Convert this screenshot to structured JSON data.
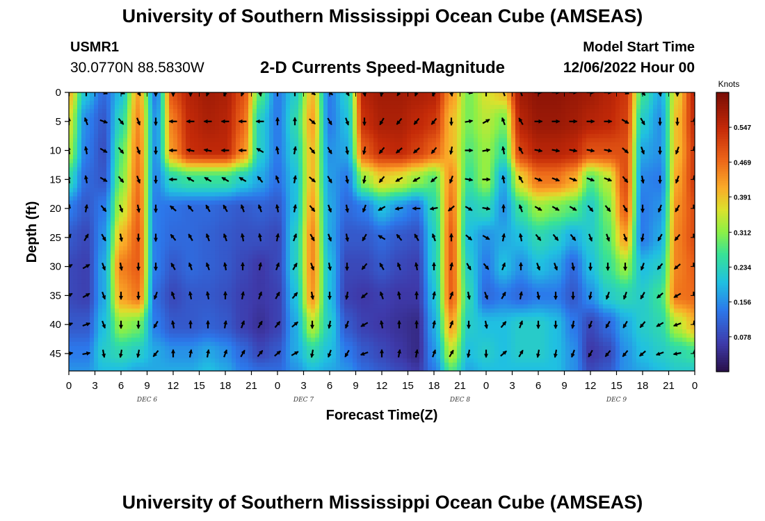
{
  "page": {
    "title_top": "University of Southern Mississippi Ocean Cube (AMSEAS)",
    "title_bottom": "University of Southern Mississippi Ocean Cube (AMSEAS)",
    "station_id": "USMR1",
    "coords": "30.0770N  88.5830W",
    "chart_title": "2-D Currents Speed-Magnitude",
    "model_start_label": "Model Start Time",
    "model_start_value": "12/06/2022 Hour 00"
  },
  "chart_data": {
    "type": "heatmap",
    "title": "2-D Currents Speed-Magnitude",
    "xlabel": "Forecast Time(Z)",
    "ylabel": "Depth (ft)",
    "colorbar_label": "Knots",
    "x_range_hours": [
      0,
      72
    ],
    "y_range_ft": [
      0,
      48
    ],
    "x_ticks": [
      {
        "hour": 0,
        "label": "0"
      },
      {
        "hour": 3,
        "label": "3"
      },
      {
        "hour": 6,
        "label": "6"
      },
      {
        "hour": 9,
        "label": "9"
      },
      {
        "hour": 12,
        "label": "12"
      },
      {
        "hour": 15,
        "label": "15"
      },
      {
        "hour": 18,
        "label": "18"
      },
      {
        "hour": 21,
        "label": "21"
      },
      {
        "hour": 24,
        "label": "0"
      },
      {
        "hour": 27,
        "label": "3"
      },
      {
        "hour": 30,
        "label": "6"
      },
      {
        "hour": 33,
        "label": "9"
      },
      {
        "hour": 36,
        "label": "12"
      },
      {
        "hour": 39,
        "label": "15"
      },
      {
        "hour": 42,
        "label": "18"
      },
      {
        "hour": 45,
        "label": "21"
      },
      {
        "hour": 48,
        "label": "0"
      },
      {
        "hour": 51,
        "label": "3"
      },
      {
        "hour": 54,
        "label": "6"
      },
      {
        "hour": 57,
        "label": "9"
      },
      {
        "hour": 60,
        "label": "12"
      },
      {
        "hour": 63,
        "label": "15"
      },
      {
        "hour": 66,
        "label": "18"
      },
      {
        "hour": 69,
        "label": "21"
      },
      {
        "hour": 72,
        "label": "0"
      }
    ],
    "date_labels": [
      {
        "hour": 9,
        "label": "DEC 6"
      },
      {
        "hour": 27,
        "label": "DEC 7"
      },
      {
        "hour": 45,
        "label": "DEC 8"
      },
      {
        "hour": 63,
        "label": "DEC 9"
      }
    ],
    "y_ticks": [
      0,
      5,
      10,
      15,
      20,
      25,
      30,
      35,
      40,
      45
    ],
    "colorbar_ticks": [
      0.078,
      0.156,
      0.234,
      0.312,
      0.391,
      0.469,
      0.547
    ],
    "value_range": [
      0.0,
      0.625
    ],
    "heat_columns_hours": [
      0,
      2,
      4,
      6,
      8,
      10,
      12,
      14,
      16,
      18,
      20,
      22,
      24,
      26,
      28,
      30,
      32,
      34,
      36,
      38,
      40,
      42,
      44,
      46,
      48,
      50,
      52,
      54,
      56,
      58,
      60,
      62,
      64,
      66,
      68,
      70,
      72
    ],
    "heat_rows_ft": [
      0,
      5,
      10,
      15,
      20,
      25,
      30,
      35,
      40,
      45,
      48
    ],
    "speed_knots": [
      [
        0.4,
        0.2,
        0.12,
        0.2,
        0.42,
        0.14,
        0.5,
        0.56,
        0.58,
        0.57,
        0.5,
        0.28,
        0.14,
        0.22,
        0.4,
        0.14,
        0.22,
        0.56,
        0.58,
        0.58,
        0.57,
        0.56,
        0.43,
        0.3,
        0.36,
        0.39,
        0.58,
        0.6,
        0.6,
        0.59,
        0.58,
        0.56,
        0.53,
        0.26,
        0.18,
        0.38,
        0.55
      ],
      [
        0.36,
        0.15,
        0.1,
        0.24,
        0.44,
        0.16,
        0.46,
        0.55,
        0.57,
        0.56,
        0.48,
        0.22,
        0.14,
        0.24,
        0.42,
        0.14,
        0.2,
        0.54,
        0.57,
        0.57,
        0.55,
        0.53,
        0.4,
        0.3,
        0.34,
        0.3,
        0.56,
        0.59,
        0.59,
        0.58,
        0.56,
        0.55,
        0.52,
        0.22,
        0.16,
        0.4,
        0.54
      ],
      [
        0.33,
        0.14,
        0.09,
        0.28,
        0.45,
        0.16,
        0.44,
        0.54,
        0.55,
        0.55,
        0.45,
        0.22,
        0.14,
        0.22,
        0.4,
        0.16,
        0.18,
        0.49,
        0.54,
        0.55,
        0.52,
        0.48,
        0.4,
        0.28,
        0.32,
        0.26,
        0.52,
        0.56,
        0.56,
        0.55,
        0.5,
        0.5,
        0.5,
        0.18,
        0.16,
        0.4,
        0.52
      ],
      [
        0.24,
        0.12,
        0.1,
        0.3,
        0.46,
        0.15,
        0.24,
        0.26,
        0.26,
        0.26,
        0.22,
        0.18,
        0.13,
        0.2,
        0.4,
        0.17,
        0.14,
        0.32,
        0.38,
        0.36,
        0.32,
        0.28,
        0.44,
        0.26,
        0.32,
        0.18,
        0.38,
        0.46,
        0.46,
        0.42,
        0.28,
        0.34,
        0.5,
        0.15,
        0.14,
        0.42,
        0.52
      ],
      [
        0.14,
        0.1,
        0.14,
        0.34,
        0.47,
        0.14,
        0.13,
        0.12,
        0.12,
        0.11,
        0.1,
        0.11,
        0.1,
        0.2,
        0.42,
        0.18,
        0.12,
        0.14,
        0.2,
        0.16,
        0.13,
        0.24,
        0.46,
        0.22,
        0.24,
        0.16,
        0.26,
        0.32,
        0.3,
        0.28,
        0.22,
        0.3,
        0.48,
        0.14,
        0.16,
        0.44,
        0.5
      ],
      [
        0.1,
        0.08,
        0.16,
        0.4,
        0.48,
        0.14,
        0.12,
        0.12,
        0.11,
        0.1,
        0.09,
        0.09,
        0.08,
        0.22,
        0.44,
        0.18,
        0.1,
        0.1,
        0.12,
        0.1,
        0.09,
        0.22,
        0.48,
        0.2,
        0.16,
        0.18,
        0.2,
        0.24,
        0.22,
        0.18,
        0.22,
        0.28,
        0.42,
        0.14,
        0.18,
        0.45,
        0.5
      ],
      [
        0.08,
        0.07,
        0.18,
        0.45,
        0.48,
        0.14,
        0.1,
        0.12,
        0.11,
        0.1,
        0.08,
        0.06,
        0.08,
        0.22,
        0.44,
        0.2,
        0.08,
        0.08,
        0.1,
        0.08,
        0.07,
        0.22,
        0.48,
        0.22,
        0.14,
        0.2,
        0.16,
        0.2,
        0.18,
        0.12,
        0.2,
        0.26,
        0.32,
        0.2,
        0.22,
        0.45,
        0.48
      ],
      [
        0.08,
        0.07,
        0.18,
        0.42,
        0.46,
        0.12,
        0.08,
        0.1,
        0.1,
        0.09,
        0.07,
        0.06,
        0.07,
        0.2,
        0.43,
        0.2,
        0.07,
        0.06,
        0.07,
        0.06,
        0.06,
        0.2,
        0.48,
        0.24,
        0.12,
        0.14,
        0.12,
        0.14,
        0.14,
        0.1,
        0.16,
        0.22,
        0.24,
        0.22,
        0.26,
        0.46,
        0.47
      ],
      [
        0.1,
        0.1,
        0.2,
        0.32,
        0.3,
        0.14,
        0.1,
        0.1,
        0.11,
        0.1,
        0.07,
        0.05,
        0.07,
        0.18,
        0.34,
        0.22,
        0.1,
        0.07,
        0.06,
        0.05,
        0.04,
        0.18,
        0.42,
        0.22,
        0.2,
        0.2,
        0.22,
        0.22,
        0.2,
        0.14,
        0.08,
        0.12,
        0.18,
        0.22,
        0.24,
        0.34,
        0.4
      ],
      [
        0.14,
        0.14,
        0.22,
        0.24,
        0.22,
        0.18,
        0.16,
        0.16,
        0.18,
        0.16,
        0.12,
        0.08,
        0.1,
        0.18,
        0.24,
        0.2,
        0.14,
        0.1,
        0.08,
        0.06,
        0.04,
        0.16,
        0.34,
        0.2,
        0.22,
        0.2,
        0.22,
        0.22,
        0.2,
        0.16,
        0.06,
        0.08,
        0.16,
        0.2,
        0.22,
        0.24,
        0.26
      ],
      [
        0.16,
        0.16,
        0.2,
        0.2,
        0.18,
        0.18,
        0.18,
        0.18,
        0.2,
        0.18,
        0.14,
        0.12,
        0.12,
        0.16,
        0.2,
        0.18,
        0.16,
        0.12,
        0.1,
        0.08,
        0.06,
        0.14,
        0.28,
        0.18,
        0.2,
        0.2,
        0.2,
        0.2,
        0.2,
        0.16,
        0.08,
        0.1,
        0.16,
        0.18,
        0.2,
        0.22,
        0.22
      ]
    ],
    "arrow_columns_hours": [
      0,
      2,
      4,
      6,
      8,
      10,
      12,
      14,
      16,
      18,
      20,
      22,
      24,
      26,
      28,
      30,
      32,
      34,
      36,
      38,
      40,
      42,
      44,
      46,
      48,
      50,
      52,
      54,
      56,
      58,
      60,
      62,
      64,
      66,
      68,
      70,
      72
    ],
    "arrow_rows_ft": [
      0,
      5,
      10,
      15,
      20,
      25,
      30,
      35,
      40,
      45
    ],
    "arrow_direction_deg": [
      [
        0,
        0,
        110,
        110,
        150,
        180,
        180,
        180,
        200,
        200,
        200,
        170,
        0,
        0,
        130,
        130,
        150,
        170,
        190,
        210,
        200,
        200,
        170,
        100,
        0,
        340,
        340,
        90,
        90,
        90,
        90,
        90,
        110,
        140,
        170,
        180,
        0
      ],
      [
        0,
        340,
        110,
        140,
        160,
        180,
        270,
        270,
        270,
        270,
        270,
        270,
        0,
        0,
        130,
        150,
        160,
        180,
        210,
        220,
        220,
        220,
        180,
        80,
        60,
        340,
        330,
        90,
        90,
        90,
        90,
        90,
        120,
        150,
        180,
        180,
        0
      ],
      [
        350,
        350,
        120,
        140,
        160,
        180,
        270,
        280,
        280,
        270,
        270,
        300,
        350,
        10,
        140,
        150,
        170,
        190,
        220,
        230,
        230,
        220,
        190,
        90,
        80,
        350,
        330,
        100,
        100,
        100,
        100,
        100,
        130,
        160,
        180,
        200,
        350
      ],
      [
        350,
        350,
        120,
        140,
        160,
        180,
        270,
        300,
        300,
        300,
        300,
        320,
        340,
        10,
        130,
        150,
        170,
        190,
        220,
        240,
        240,
        230,
        200,
        100,
        90,
        350,
        330,
        110,
        110,
        110,
        110,
        110,
        140,
        170,
        180,
        200,
        350
      ],
      [
        10,
        10,
        140,
        160,
        170,
        180,
        310,
        320,
        330,
        330,
        340,
        340,
        350,
        10,
        140,
        160,
        170,
        200,
        240,
        260,
        270,
        260,
        230,
        120,
        100,
        0,
        340,
        120,
        120,
        120,
        140,
        140,
        150,
        180,
        200,
        210,
        340
      ],
      [
        30,
        30,
        150,
        170,
        180,
        180,
        320,
        330,
        340,
        340,
        350,
        350,
        10,
        20,
        150,
        160,
        170,
        210,
        300,
        320,
        330,
        340,
        0,
        130,
        120,
        10,
        350,
        140,
        140,
        140,
        160,
        160,
        160,
        190,
        210,
        220,
        340
      ],
      [
        60,
        60,
        160,
        170,
        180,
        180,
        330,
        340,
        340,
        350,
        0,
        10,
        20,
        30,
        160,
        170,
        180,
        220,
        330,
        340,
        350,
        0,
        10,
        150,
        140,
        20,
        0,
        160,
        160,
        170,
        180,
        180,
        180,
        200,
        220,
        230,
        340
      ],
      [
        60,
        60,
        160,
        180,
        180,
        200,
        340,
        350,
        350,
        0,
        10,
        20,
        30,
        40,
        170,
        180,
        190,
        230,
        340,
        350,
        0,
        10,
        20,
        170,
        160,
        30,
        10,
        170,
        180,
        180,
        190,
        200,
        200,
        210,
        230,
        240,
        340
      ],
      [
        70,
        70,
        160,
        180,
        180,
        210,
        350,
        0,
        0,
        10,
        20,
        30,
        40,
        50,
        180,
        190,
        200,
        240,
        350,
        0,
        0,
        10,
        20,
        180,
        170,
        40,
        20,
        180,
        180,
        190,
        200,
        210,
        210,
        220,
        240,
        250,
        350
      ],
      [
        80,
        80,
        170,
        190,
        190,
        220,
        0,
        10,
        10,
        20,
        30,
        40,
        50,
        60,
        190,
        200,
        210,
        250,
        0,
        10,
        10,
        20,
        30,
        190,
        180,
        50,
        30,
        190,
        190,
        200,
        210,
        220,
        220,
        230,
        250,
        260,
        0
      ]
    ]
  }
}
